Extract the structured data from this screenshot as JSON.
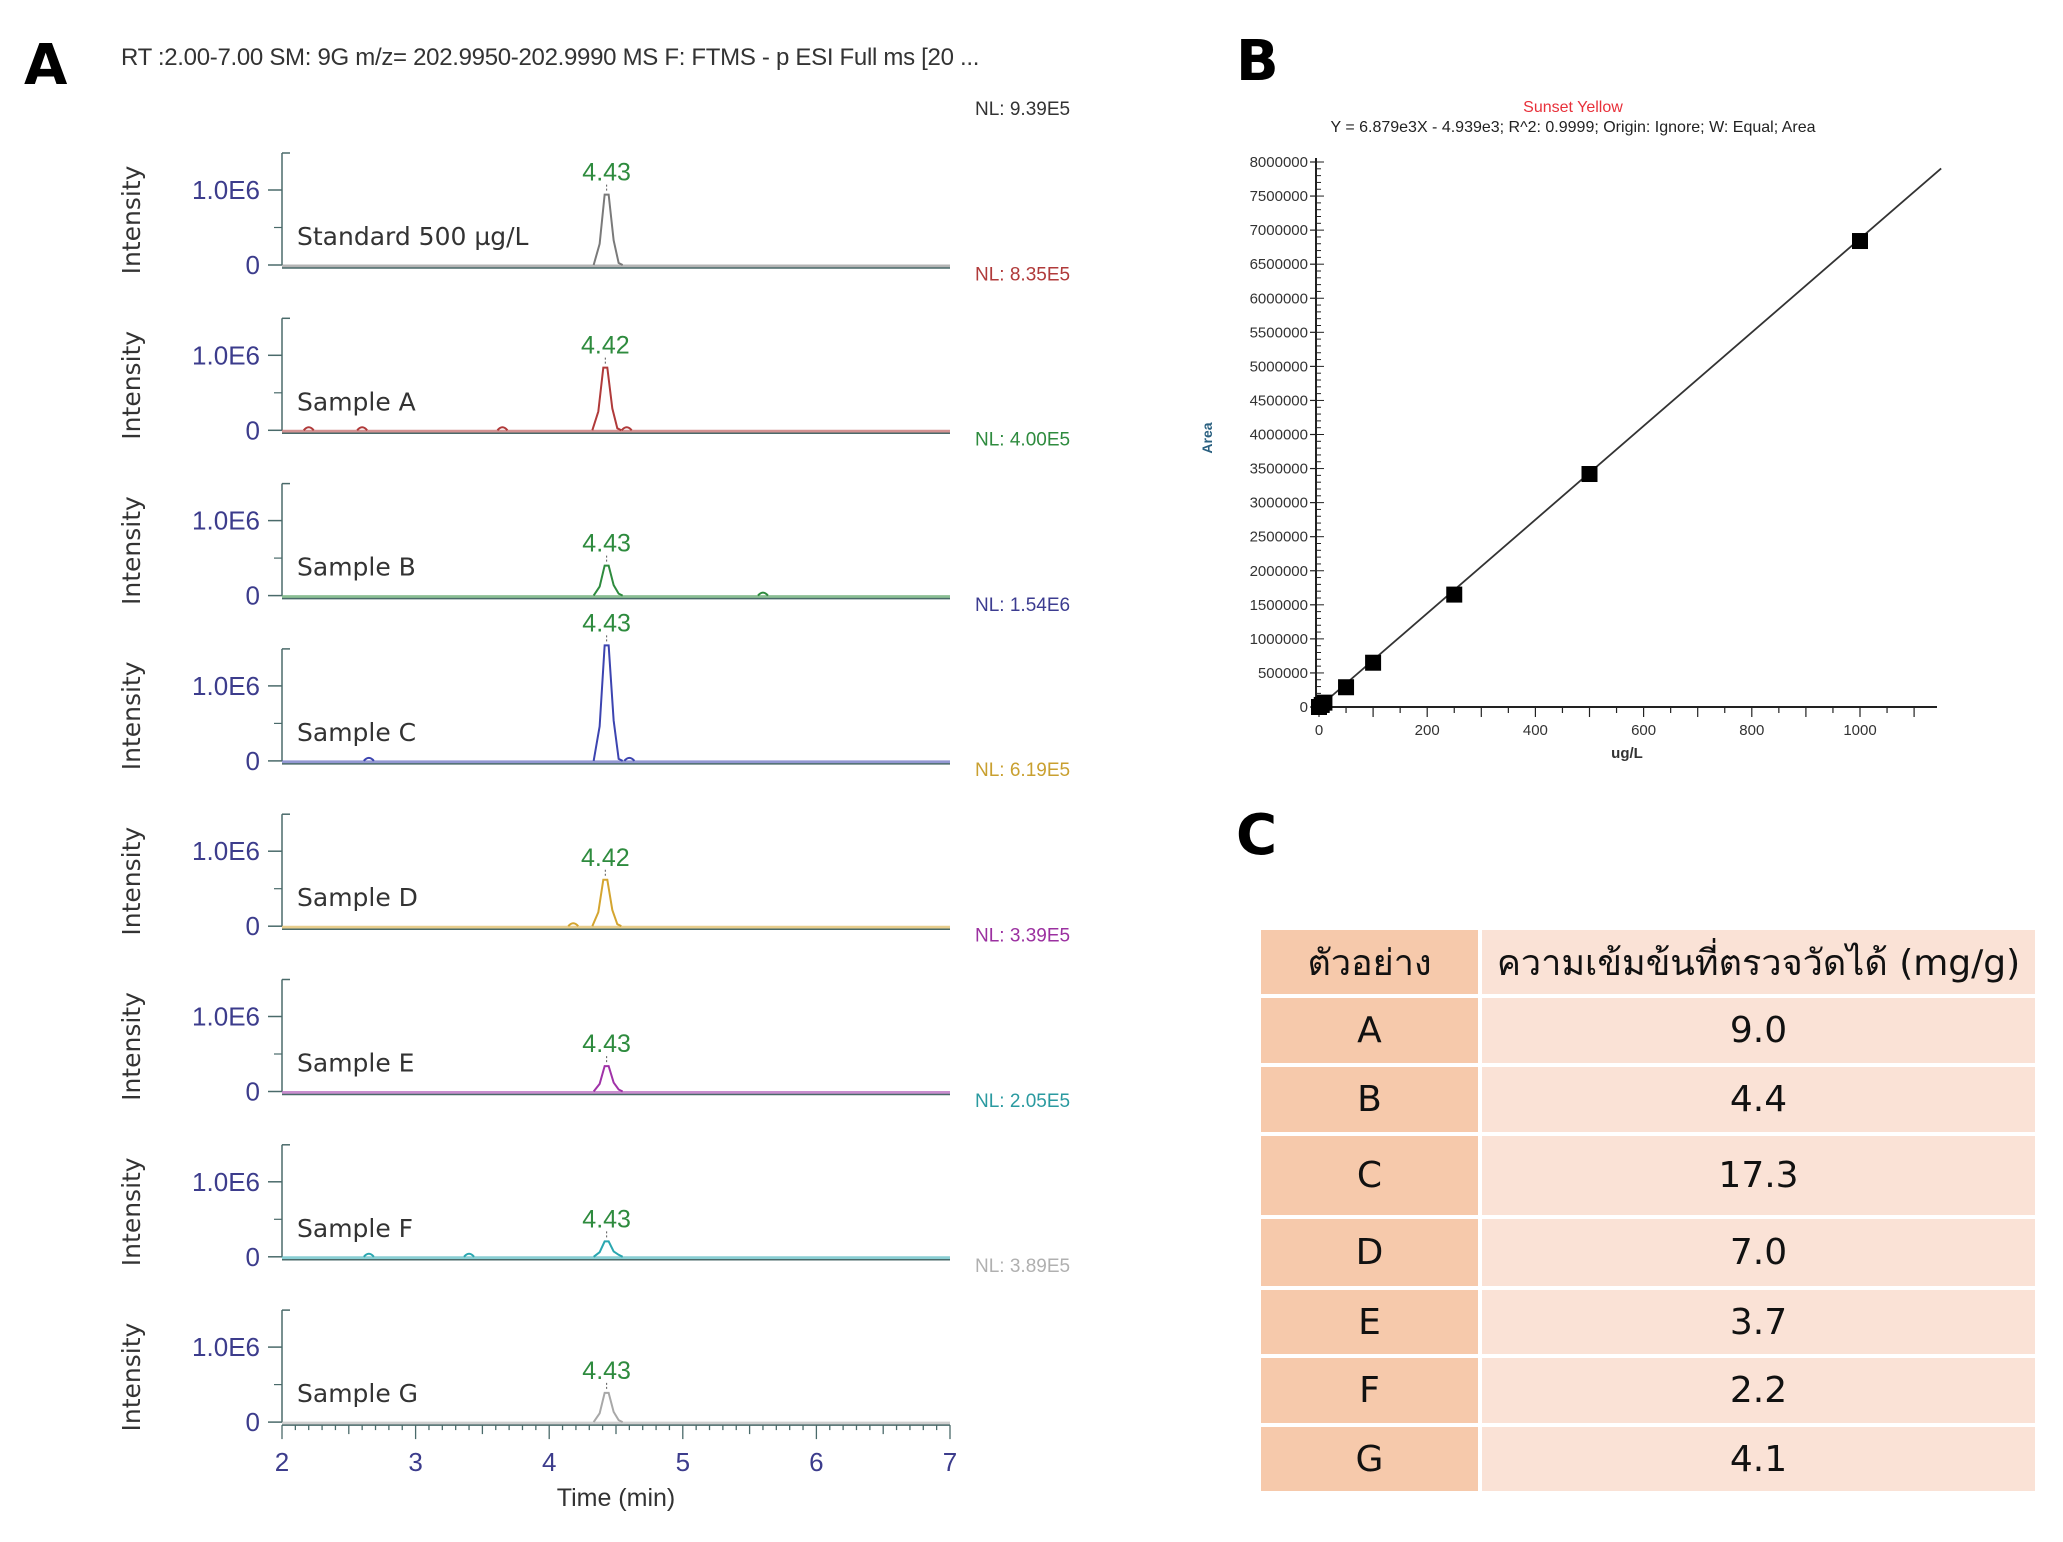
{
  "panels": {
    "a_label": "A",
    "b_label": "B",
    "c_label": "C"
  },
  "chart_data": [
    {
      "type": "line",
      "panel": "A",
      "title": "RT :2.00-7.00 SM: 9G m/z= 202.9950-202.9990 MS  F: FTMS - p ESI Full ms [20 ...",
      "xlabel": "Time (min)",
      "ylabel": "Intensity",
      "xlim": [
        2,
        7
      ],
      "x_ticks": [
        "2",
        "3",
        "4",
        "5",
        "6",
        "7"
      ],
      "y_tick_labels": [
        "0",
        "1.0E6"
      ],
      "series": [
        {
          "name": "Standard 500 µg/L",
          "color": "#7a7a7a",
          "peak_rt": 4.43,
          "peak_label": "4.43",
          "nl": "NL: 9.39E5",
          "nl_color": "#333333",
          "peak_intensity": 939000,
          "minor_peaks": []
        },
        {
          "name": "Sample A",
          "color": "#b03a3a",
          "peak_rt": 4.42,
          "peak_label": "4.42",
          "nl": "NL: 8.35E5",
          "nl_color": "#b03a3a",
          "peak_intensity": 835000,
          "minor_peaks": [
            2.2,
            2.6,
            3.65,
            4.58
          ]
        },
        {
          "name": "Sample B",
          "color": "#2e8b3e",
          "peak_rt": 4.43,
          "peak_label": "4.43",
          "nl": "NL: 4.00E5",
          "nl_color": "#2e8b3e",
          "peak_intensity": 400000,
          "minor_peaks": [
            5.6
          ]
        },
        {
          "name": "Sample C",
          "color": "#3c44b0",
          "peak_rt": 4.43,
          "peak_label": "4.43",
          "nl": "NL: 1.54E6",
          "nl_color": "#3c3c90",
          "peak_intensity": 1540000,
          "minor_peaks": [
            2.65,
            4.6
          ]
        },
        {
          "name": "Sample D",
          "color": "#d4a530",
          "peak_rt": 4.42,
          "peak_label": "4.42",
          "nl": "NL: 6.19E5",
          "nl_color": "#c9a030",
          "peak_intensity": 619000,
          "minor_peaks": [
            4.18
          ]
        },
        {
          "name": "Sample E",
          "color": "#a032a8",
          "peak_rt": 4.43,
          "peak_label": "4.43",
          "nl": "NL: 3.39E5",
          "nl_color": "#9b30a0",
          "peak_intensity": 339000,
          "minor_peaks": []
        },
        {
          "name": "Sample F",
          "color": "#2aa7b0",
          "peak_rt": 4.43,
          "peak_label": "4.43",
          "nl": "NL: 2.05E5",
          "nl_color": "#2a9aa0",
          "peak_intensity": 205000,
          "minor_peaks": [
            2.65,
            3.4
          ]
        },
        {
          "name": "Sample G",
          "color": "#a8a8a8",
          "peak_rt": 4.43,
          "peak_label": "4.43",
          "nl": "NL: 3.89E5",
          "nl_color": "#b0b0b0",
          "peak_intensity": 389000,
          "minor_peaks": []
        }
      ],
      "label_color": "#3c3c8c",
      "peak_label_color": "#2e8b3e"
    },
    {
      "type": "scatter",
      "panel": "B",
      "title": "Sunset Yellow",
      "title_color": "#e8303a",
      "subtitle": "Y = 6.879e3X - 4.939e3; R^2: 0.9999; Origin: Ignore; W: Equal; Area",
      "xlabel": "ug/L",
      "ylabel": "Area",
      "xlim": [
        0,
        1130
      ],
      "ylim": [
        0,
        8000000
      ],
      "x_ticks": [
        0,
        200,
        400,
        600,
        800,
        1000
      ],
      "y_ticks": [
        0,
        500000,
        1000000,
        1500000,
        2000000,
        2500000,
        3000000,
        3500000,
        4000000,
        4500000,
        5000000,
        5500000,
        6000000,
        6500000,
        7000000,
        7500000,
        8000000
      ],
      "points": [
        {
          "x": 0,
          "y": 0
        },
        {
          "x": 5,
          "y": 30000
        },
        {
          "x": 10,
          "y": 64000
        },
        {
          "x": 50,
          "y": 290000
        },
        {
          "x": 100,
          "y": 650000
        },
        {
          "x": 250,
          "y": 1650000
        },
        {
          "x": 500,
          "y": 3420000
        },
        {
          "x": 1000,
          "y": 6840000
        }
      ],
      "fit": {
        "slope": 6879,
        "intercept": -4939,
        "x_end": 1150
      }
    }
  ],
  "table": {
    "headers": [
      "ตัวอย่าง",
      "ความเข้มข้นที่ตรวจวัดได้ (mg/g)"
    ],
    "rows": [
      [
        "A",
        "9.0"
      ],
      [
        "B",
        "4.4"
      ],
      [
        "C",
        "17.3"
      ],
      [
        "D",
        "7.0"
      ],
      [
        "E",
        "3.7"
      ],
      [
        "F",
        "2.2"
      ],
      [
        "G",
        "4.1"
      ]
    ]
  }
}
